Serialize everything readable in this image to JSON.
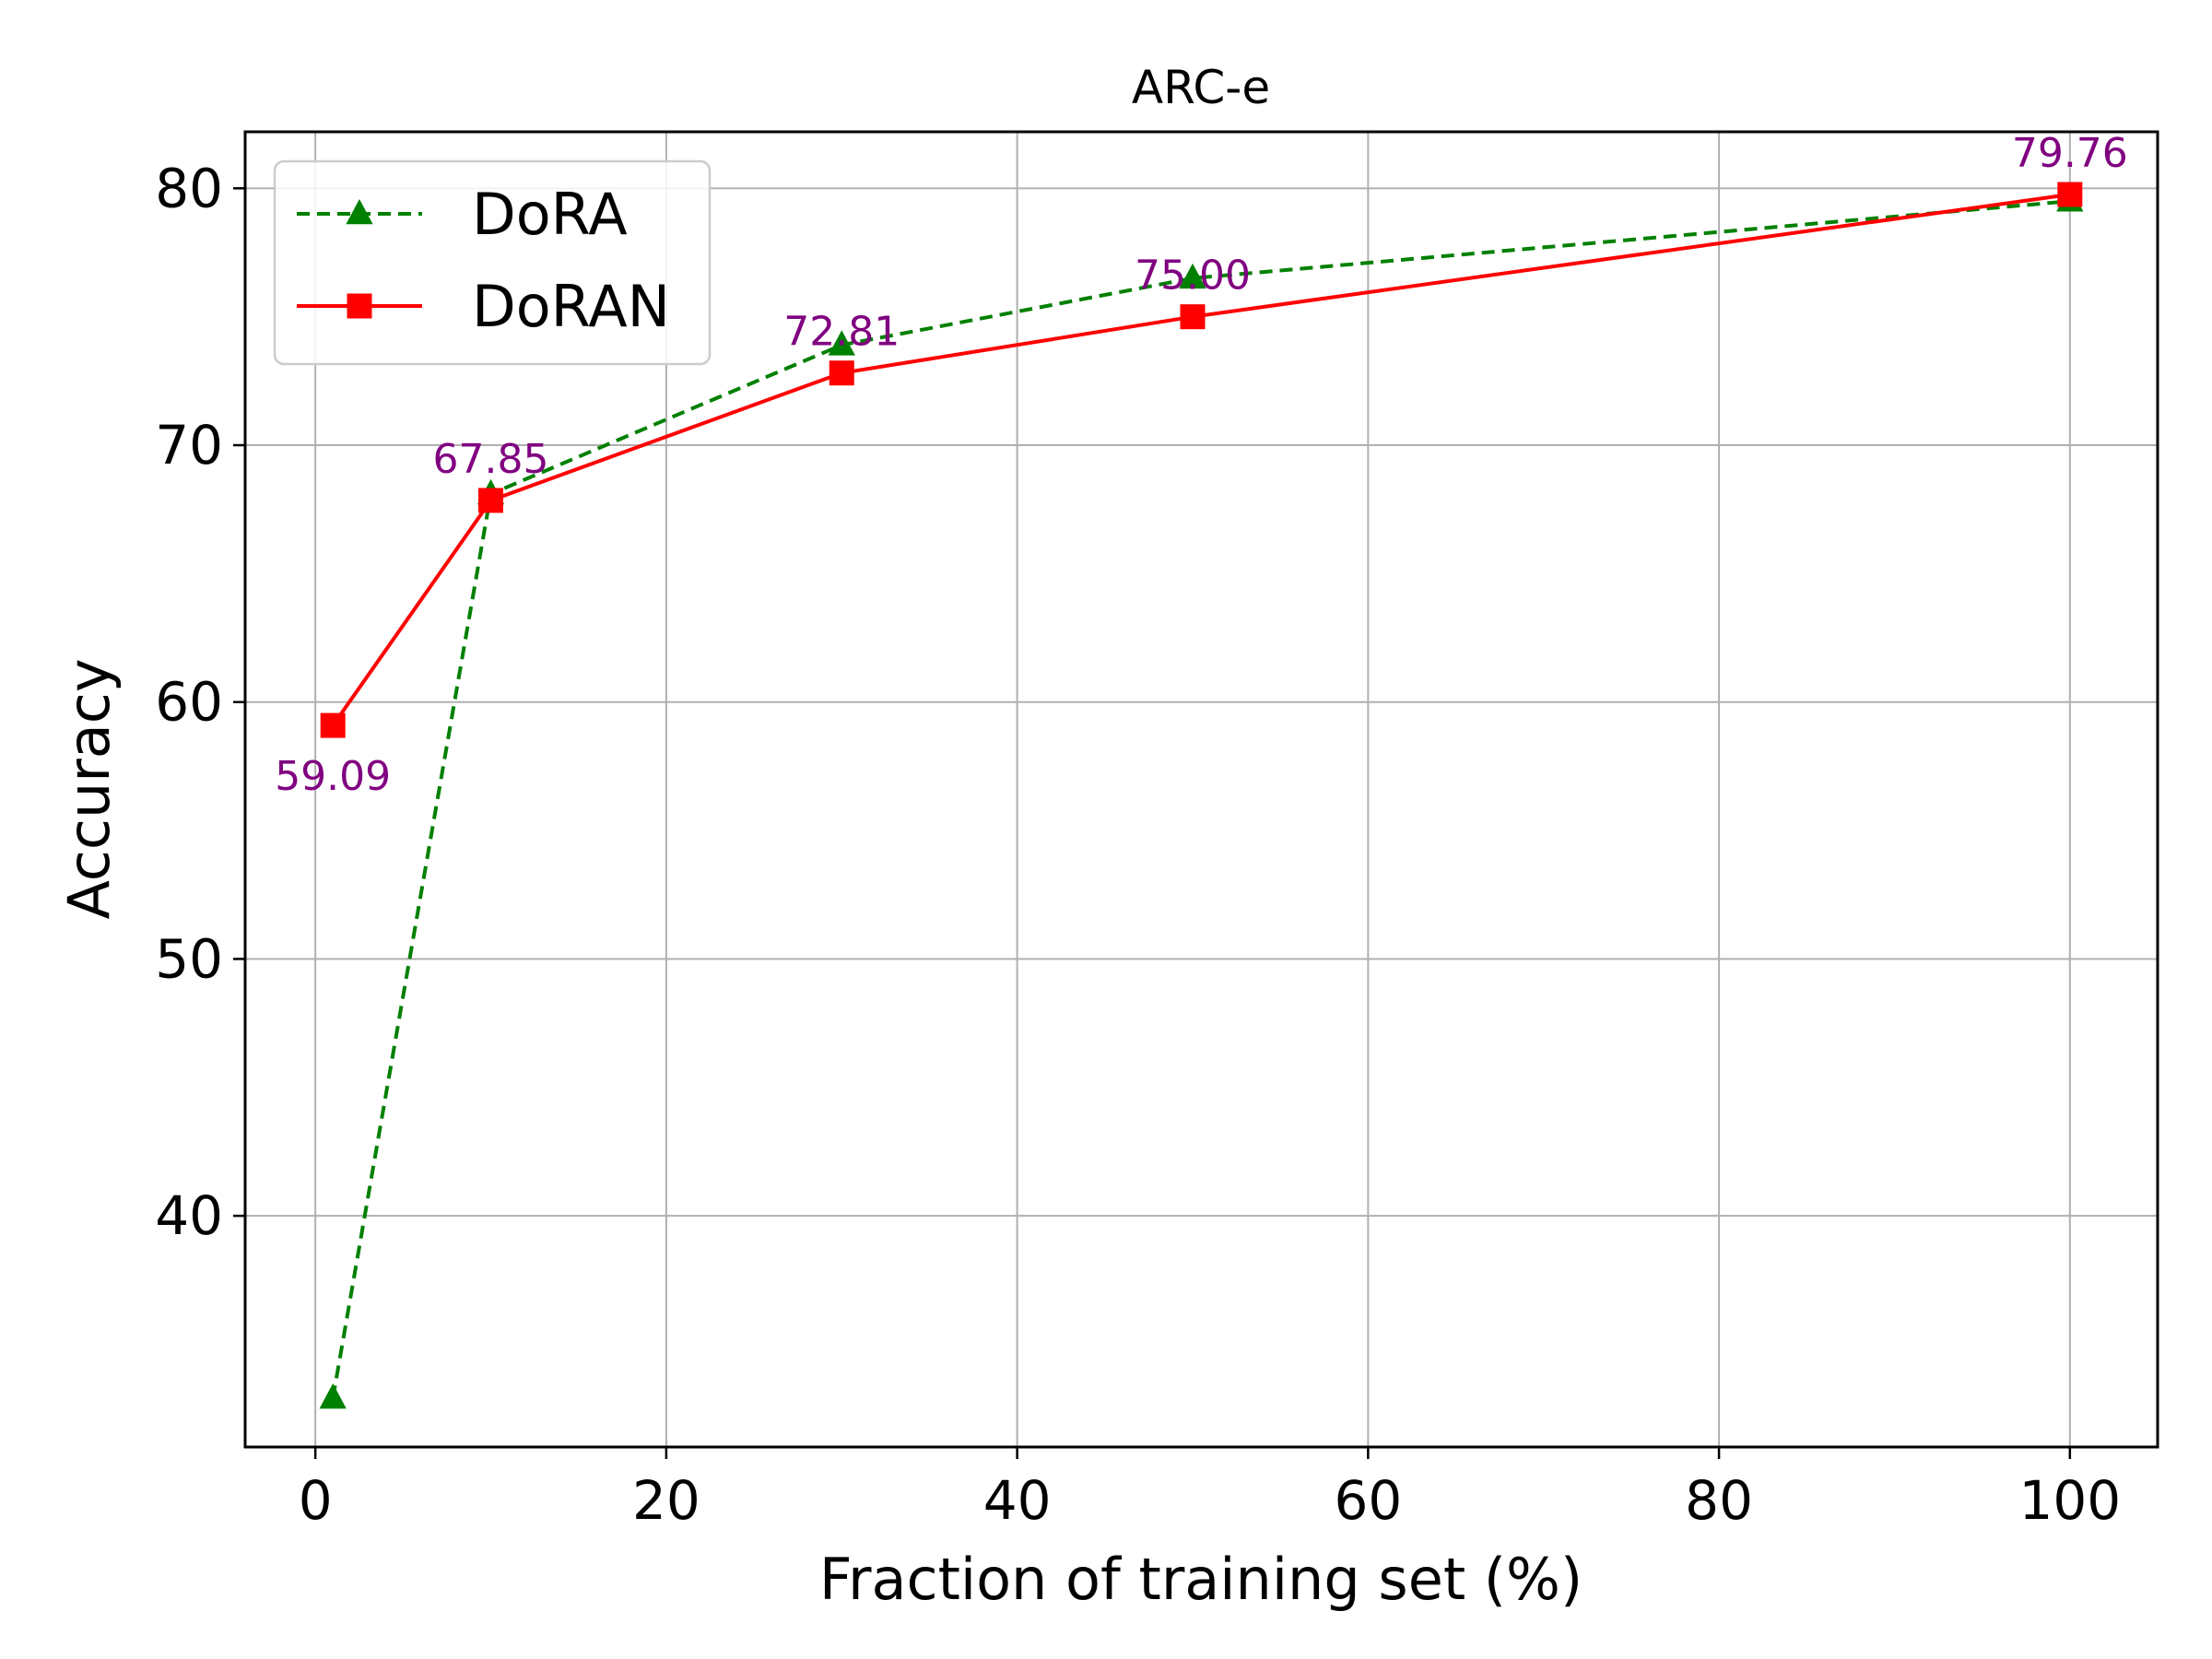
{
  "chart_data": {
    "type": "line",
    "title": "ARC-e",
    "xlabel": "Fraction of training set (%)",
    "ylabel": "Accuracy",
    "xlim": [
      -4,
      105
    ],
    "ylim": [
      31,
      82.2
    ],
    "xticks": [
      0,
      20,
      40,
      60,
      80,
      100
    ],
    "yticks": [
      40,
      50,
      60,
      70,
      80
    ],
    "grid": true,
    "legend_position": "top-left",
    "series": [
      {
        "name": "DoRA",
        "x": [
          1,
          10,
          30,
          50,
          100
        ],
        "y": [
          32.9,
          68.1,
          73.9,
          76.5,
          79.5
        ],
        "color": "#008000",
        "line_style": "dashed",
        "marker": "triangle"
      },
      {
        "name": "DoRAN",
        "x": [
          1,
          10,
          30,
          50,
          100
        ],
        "y": [
          59.09,
          67.85,
          72.81,
          75.0,
          79.76
        ],
        "color": "#ff0000",
        "line_style": "solid",
        "marker": "square"
      }
    ],
    "annotations": [
      {
        "text": "59.09",
        "x": 1,
        "y": 59.09,
        "placement": "below"
      },
      {
        "text": "67.85",
        "x": 10,
        "y": 67.85,
        "placement": "above"
      },
      {
        "text": "72.81",
        "x": 30,
        "y": 72.81,
        "placement": "above"
      },
      {
        "text": "75.00",
        "x": 50,
        "y": 75.0,
        "placement": "above"
      },
      {
        "text": "79.76",
        "x": 100,
        "y": 79.76,
        "placement": "above"
      }
    ],
    "annotation_color": "#800080",
    "grid_color": "#b0b0b0"
  }
}
